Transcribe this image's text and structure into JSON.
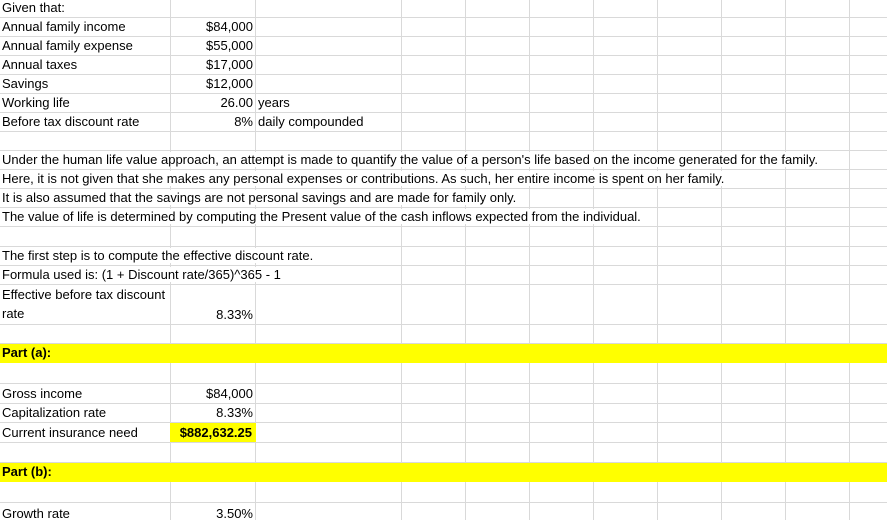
{
  "given": {
    "heading": "Given that:",
    "items": [
      {
        "label": "Annual family income",
        "value": "$84,000",
        "unit": ""
      },
      {
        "label": "Annual family expense",
        "value": "$55,000",
        "unit": ""
      },
      {
        "label": "Annual taxes",
        "value": "$17,000",
        "unit": ""
      },
      {
        "label": "Savings",
        "value": "$12,000",
        "unit": ""
      },
      {
        "label": "Working life",
        "value": "26.00",
        "unit": "years"
      },
      {
        "label": "Before tax discount rate",
        "value": "8%",
        "unit": "daily compounded"
      }
    ]
  },
  "explanation": [
    "Under the human life value approach, an attempt is made to quantify the value of a person's life based on the income generated for the family.",
    "Here, it is not given that she makes any personal expenses or contributions. As such, her entire income is spent on her family.",
    "It is also assumed that the savings are not personal savings and are made for family only.",
    "The value of life is determined by computing the Present value of the cash inflows expected from the individual."
  ],
  "step": {
    "line1": "The first step is to compute the effective discount rate.",
    "line2": "Formula used is: (1 + Discount rate/365)^365 - 1",
    "label": "Effective before tax discount rate",
    "value": "8.33%"
  },
  "part_a": {
    "heading": "Part (a):",
    "gross_label": "Gross income",
    "gross_value": "$84,000",
    "cap_label": "Capitalization rate",
    "cap_value": "8.33%",
    "need_label": "Current insurance need",
    "need_value": "$882,632.25"
  },
  "part_b": {
    "heading": "Part (b):",
    "growth_label": "Growth rate",
    "growth_value": "3.50%"
  },
  "colors": {
    "highlight": "#ffff00",
    "gridline": "#d9d9d9"
  }
}
